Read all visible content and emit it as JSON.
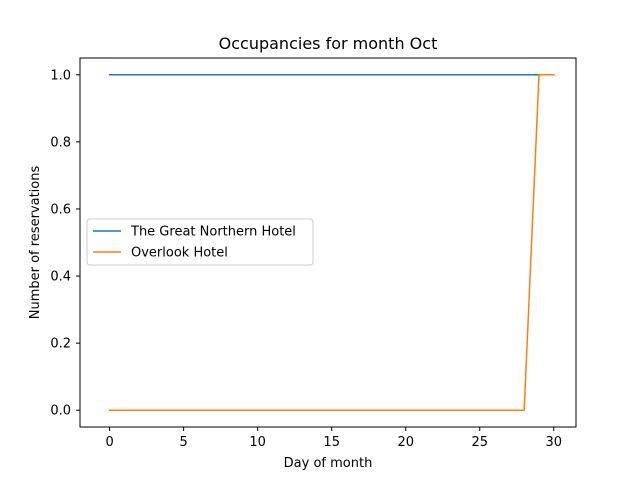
{
  "chart_data": {
    "type": "line",
    "title": "Occupancies for month Oct",
    "xlabel": "Day of month",
    "ylabel": "Number of reservations",
    "xlim": [
      -2,
      31.5
    ],
    "ylim": [
      -0.05,
      1.05
    ],
    "xticks": [
      0,
      5,
      10,
      15,
      20,
      25,
      30
    ],
    "xtick_labels": [
      "0",
      "5",
      "10",
      "15",
      "20",
      "25",
      "30"
    ],
    "yticks": [
      0.0,
      0.2,
      0.4,
      0.6,
      0.8,
      1.0
    ],
    "ytick_labels": [
      "0.0",
      "0.2",
      "0.4",
      "0.6",
      "0.8",
      "1.0"
    ],
    "grid": false,
    "legend_position": "center-left",
    "series": [
      {
        "name": "The Great Northern Hotel",
        "color": "#1f77b4",
        "x": [
          0,
          1,
          2,
          3,
          4,
          5,
          6,
          7,
          8,
          9,
          10,
          11,
          12,
          13,
          14,
          15,
          16,
          17,
          18,
          19,
          20,
          21,
          22,
          23,
          24,
          25,
          26,
          27,
          28,
          29,
          30
        ],
        "y": [
          1,
          1,
          1,
          1,
          1,
          1,
          1,
          1,
          1,
          1,
          1,
          1,
          1,
          1,
          1,
          1,
          1,
          1,
          1,
          1,
          1,
          1,
          1,
          1,
          1,
          1,
          1,
          1,
          1,
          1,
          1
        ]
      },
      {
        "name": "Overlook Hotel",
        "color": "#ff7f0e",
        "x": [
          0,
          1,
          2,
          3,
          4,
          5,
          6,
          7,
          8,
          9,
          10,
          11,
          12,
          13,
          14,
          15,
          16,
          17,
          18,
          19,
          20,
          21,
          22,
          23,
          24,
          25,
          26,
          27,
          28,
          29,
          30
        ],
        "y": [
          0,
          0,
          0,
          0,
          0,
          0,
          0,
          0,
          0,
          0,
          0,
          0,
          0,
          0,
          0,
          0,
          0,
          0,
          0,
          0,
          0,
          0,
          0,
          0,
          0,
          0,
          0,
          0,
          0,
          1,
          1
        ]
      }
    ]
  }
}
